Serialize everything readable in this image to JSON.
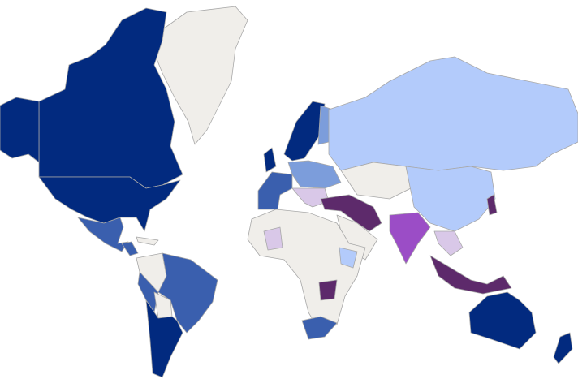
{
  "map": {
    "palette": [
      "#022a7f",
      "#3a5fae",
      "#b3cbfb",
      "#7c9ddb",
      "#5d2a6b",
      "#9b4dc6",
      "#d9c8e8",
      "#f0eeea"
    ]
  }
}
